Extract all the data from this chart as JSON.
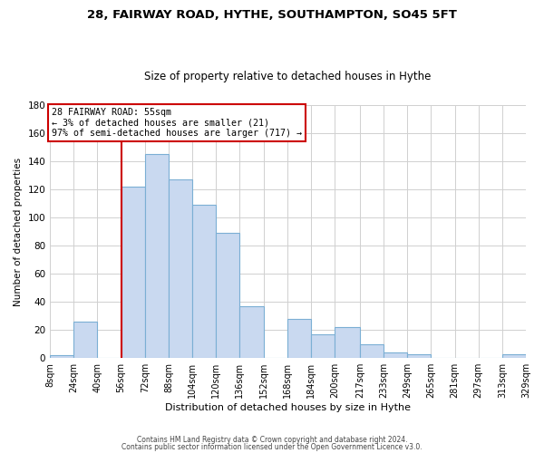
{
  "title": "28, FAIRWAY ROAD, HYTHE, SOUTHAMPTON, SO45 5FT",
  "subtitle": "Size of property relative to detached houses in Hythe",
  "xlabel": "Distribution of detached houses by size in Hythe",
  "ylabel": "Number of detached properties",
  "bar_color": "#c9d9f0",
  "bar_edge_color": "#7bafd4",
  "bin_edges": [
    8,
    24,
    40,
    56,
    72,
    88,
    104,
    120,
    136,
    152,
    168,
    184,
    200,
    217,
    233,
    249,
    265,
    281,
    297,
    313,
    329
  ],
  "bin_labels": [
    "8sqm",
    "24sqm",
    "40sqm",
    "56sqm",
    "72sqm",
    "88sqm",
    "104sqm",
    "120sqm",
    "136sqm",
    "152sqm",
    "168sqm",
    "184sqm",
    "200sqm",
    "217sqm",
    "233sqm",
    "249sqm",
    "265sqm",
    "281sqm",
    "297sqm",
    "313sqm",
    "329sqm"
  ],
  "counts": [
    2,
    26,
    0,
    122,
    145,
    127,
    109,
    89,
    37,
    0,
    28,
    17,
    22,
    10,
    4,
    3,
    0,
    0,
    0,
    3
  ],
  "property_line_x": 56,
  "annotation_title": "28 FAIRWAY ROAD: 55sqm",
  "annotation_line1": "← 3% of detached houses are smaller (21)",
  "annotation_line2": "97% of semi-detached houses are larger (717) →",
  "annotation_box_color": "#ffffff",
  "annotation_box_edge": "#cc0000",
  "property_line_color": "#cc0000",
  "footer1": "Contains HM Land Registry data © Crown copyright and database right 2024.",
  "footer2": "Contains public sector information licensed under the Open Government Licence v3.0.",
  "ylim": [
    0,
    180
  ],
  "yticks": [
    0,
    20,
    40,
    60,
    80,
    100,
    120,
    140,
    160,
    180
  ],
  "grid_color": "#d0d0d0",
  "title_fontsize": 9.5,
  "subtitle_fontsize": 8.5
}
